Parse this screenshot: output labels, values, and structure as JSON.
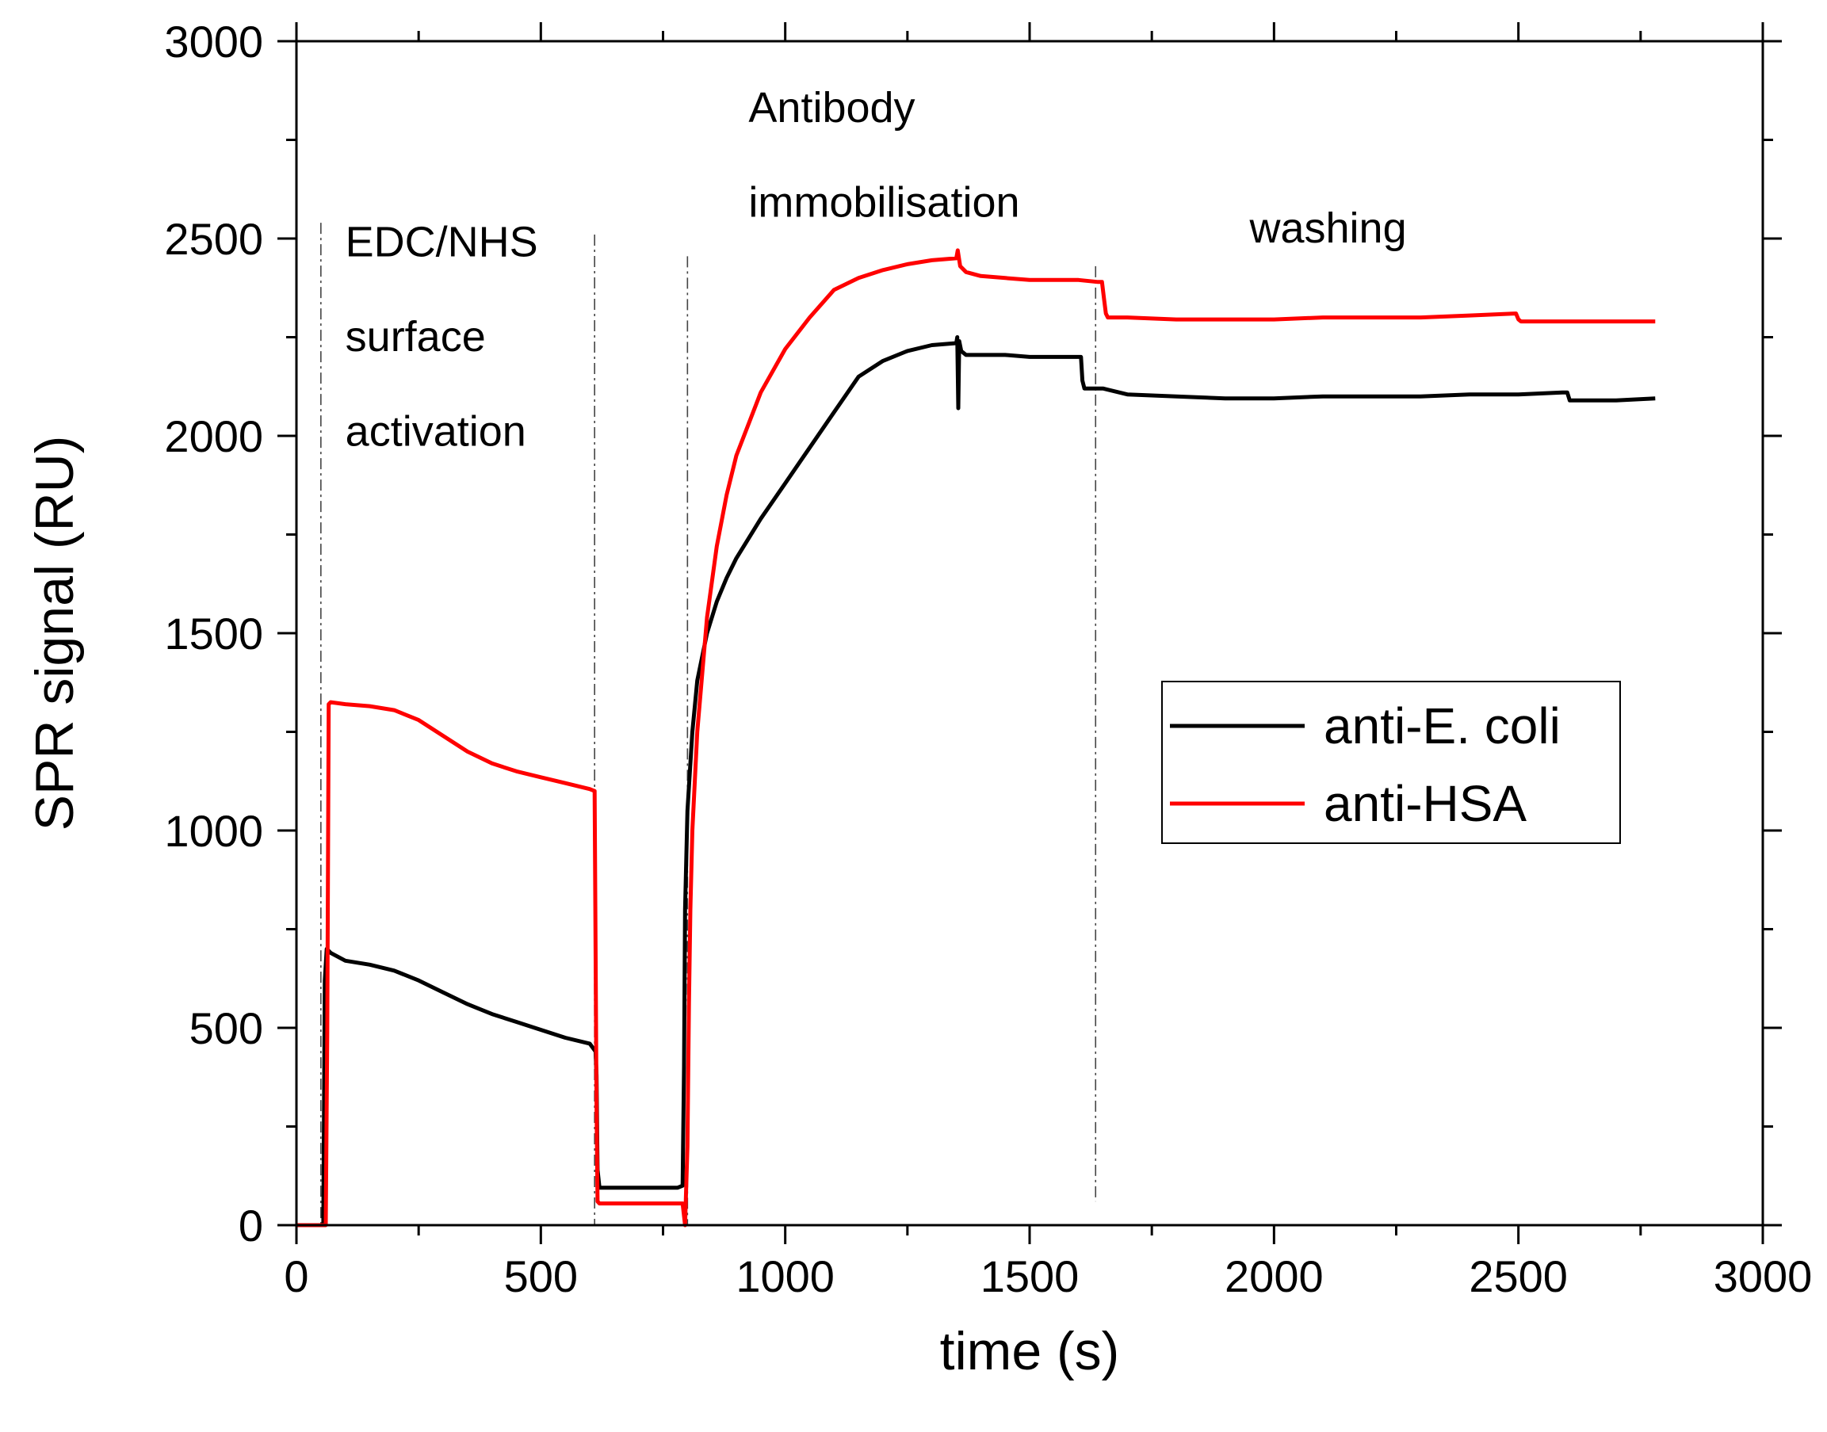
{
  "chart_data": {
    "type": "line",
    "title": "",
    "xlabel": "time (s)",
    "ylabel": "SPR signal (RU)",
    "xlim": [
      0,
      3000
    ],
    "ylim": [
      0,
      3000
    ],
    "xticks": [
      0,
      500,
      1000,
      1500,
      2000,
      2500,
      3000
    ],
    "yticks": [
      0,
      500,
      1000,
      1500,
      2000,
      2500,
      3000
    ],
    "xtick_labels": [
      "0",
      "500",
      "1000",
      "1500",
      "2000",
      "2500",
      "3000"
    ],
    "ytick_labels": [
      "0",
      "500",
      "1000",
      "1500",
      "2000",
      "2500",
      "3000"
    ],
    "grid": false,
    "legend_position": "center-right",
    "series": [
      {
        "name": "anti-E. coli",
        "color": "#000000",
        "x": [
          0,
          55,
          58,
          62,
          70,
          100,
          150,
          200,
          250,
          300,
          350,
          400,
          450,
          500,
          550,
          600,
          612,
          614,
          616,
          620,
          700,
          780,
          790,
          793,
          795,
          800,
          810,
          820,
          840,
          860,
          880,
          900,
          950,
          1000,
          1050,
          1100,
          1150,
          1200,
          1250,
          1300,
          1350,
          1352,
          1354,
          1356,
          1360,
          1370,
          1400,
          1450,
          1500,
          1550,
          1605,
          1608,
          1612,
          1650,
          1700,
          1800,
          1900,
          2000,
          2100,
          2200,
          2300,
          2400,
          2500,
          2590,
          2600,
          2605,
          2610,
          2700,
          2780
        ],
        "y": [
          0,
          0,
          620,
          700,
          690,
          670,
          660,
          645,
          620,
          590,
          560,
          535,
          515,
          495,
          475,
          460,
          440,
          380,
          140,
          95,
          95,
          95,
          100,
          400,
          800,
          1050,
          1250,
          1380,
          1500,
          1580,
          1640,
          1690,
          1790,
          1880,
          1970,
          2060,
          2150,
          2190,
          2215,
          2230,
          2235,
          2250,
          2070,
          2240,
          2215,
          2205,
          2205,
          2205,
          2200,
          2200,
          2200,
          2140,
          2120,
          2120,
          2105,
          2100,
          2095,
          2095,
          2100,
          2100,
          2100,
          2105,
          2105,
          2110,
          2110,
          2090,
          2090,
          2090,
          2095
        ]
      },
      {
        "name": "anti-HSA",
        "color": "#ff0000",
        "x": [
          0,
          50,
          60,
          63,
          66,
          70,
          100,
          150,
          200,
          250,
          300,
          350,
          400,
          450,
          500,
          550,
          600,
          610,
          612,
          614,
          616,
          620,
          700,
          790,
          795,
          800,
          803,
          806,
          810,
          820,
          840,
          860,
          880,
          900,
          950,
          1000,
          1050,
          1100,
          1150,
          1200,
          1250,
          1300,
          1350,
          1353,
          1358,
          1370,
          1400,
          1450,
          1500,
          1550,
          1600,
          1640,
          1648,
          1652,
          1656,
          1660,
          1700,
          1800,
          1900,
          2000,
          2100,
          2200,
          2300,
          2400,
          2495,
          2500,
          2505,
          2600,
          2700,
          2780
        ],
        "y": [
          0,
          0,
          0,
          500,
          1320,
          1325,
          1320,
          1315,
          1305,
          1280,
          1240,
          1200,
          1170,
          1150,
          1135,
          1120,
          1105,
          1100,
          700,
          300,
          60,
          55,
          55,
          55,
          0,
          200,
          560,
          800,
          1000,
          1250,
          1540,
          1720,
          1850,
          1950,
          2110,
          2220,
          2300,
          2370,
          2400,
          2420,
          2435,
          2445,
          2450,
          2470,
          2430,
          2415,
          2405,
          2400,
          2395,
          2395,
          2395,
          2390,
          2390,
          2350,
          2310,
          2300,
          2300,
          2295,
          2295,
          2295,
          2300,
          2300,
          2300,
          2305,
          2310,
          2295,
          2290,
          2290,
          2290,
          2290
        ]
      }
    ],
    "phase_boundaries": [
      50,
      610,
      800,
      1635
    ],
    "annotations": [
      {
        "lines": [
          "EDC/NHS",
          "surface",
          "activation"
        ],
        "x": 100,
        "y": 2455,
        "line_step": 240
      },
      {
        "lines": [
          "Antibody",
          "immobilisation"
        ],
        "x": 925,
        "y": 2795,
        "line_step": 240
      },
      {
        "lines": [
          "washing"
        ],
        "x": 1950,
        "y": 2490,
        "line_step": 240
      }
    ]
  }
}
